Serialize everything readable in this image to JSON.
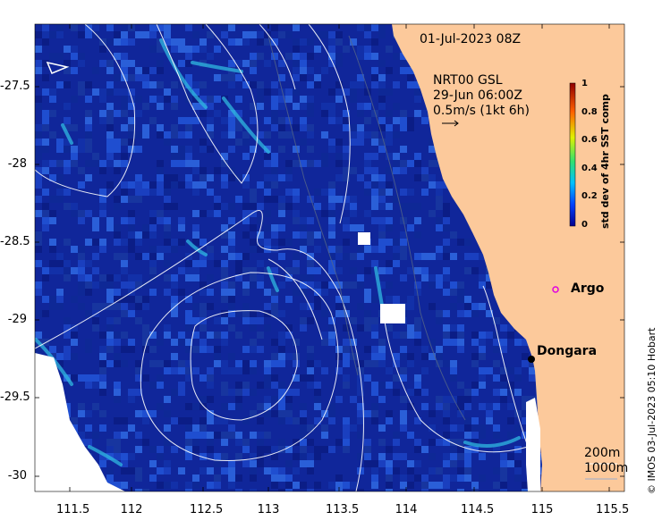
{
  "map": {
    "date_label": "01-Jul-2023 08Z",
    "current_source": "NRT00 GSL",
    "current_time": "29-Jun 06:00Z",
    "current_scale": "0.5m/s (1kt 6h)",
    "depth_labels": [
      "200m",
      "1000m"
    ],
    "credit": "© IMOS 03-Jul-2023 05:10 Hobart",
    "places": [
      {
        "name": "Argo",
        "lon": 115.0,
        "lat": -28.78,
        "marker": "circle-magenta"
      },
      {
        "name": "Dongara",
        "lon": 114.92,
        "lat": -29.25,
        "marker": "dot-black"
      }
    ],
    "x_ticks": [
      "111.5",
      "112",
      "112.5",
      "113",
      "113.5",
      "114",
      "114.5",
      "115",
      "115.5"
    ],
    "y_ticks": [
      "-27.5",
      "-28",
      "-28.5",
      "-29",
      "-29.5",
      "-30"
    ],
    "extent": {
      "lon": [
        111.33,
        115.65
      ],
      "lat": [
        -30.1,
        -27.07
      ]
    },
    "colors": {
      "land": "#fcc99b",
      "ocean_low": "#1228a0",
      "ocean_high": "#2fd0e6"
    }
  },
  "colorbar": {
    "label": "std dev of 4hr SST comp",
    "ticks": [
      "1",
      "0.8",
      "0.6",
      "0.4",
      "0.2",
      "0"
    ],
    "stops": [
      "#00008f",
      "#0060ff",
      "#20e0e0",
      "#40e040",
      "#f0f000",
      "#ff6000",
      "#900000"
    ]
  }
}
